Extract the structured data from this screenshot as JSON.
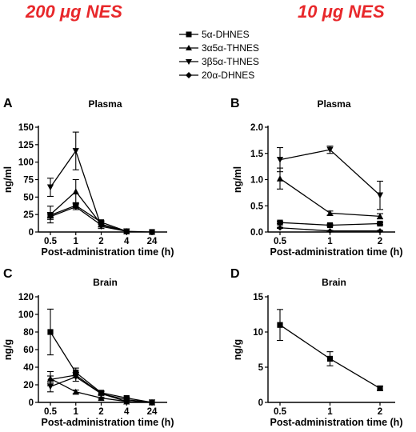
{
  "headings": {
    "left": "200 μg NES",
    "right": "10 μg NES"
  },
  "legend": [
    {
      "marker": "square",
      "label": "5α-DHNES"
    },
    {
      "marker": "triangle-up",
      "label": "3α5α-THNES"
    },
    {
      "marker": "triangle-down",
      "label": "3β5α-THNES"
    },
    {
      "marker": "diamond",
      "label": "20α-DHNES"
    }
  ],
  "colors": {
    "heading": "#e8282b",
    "ink": "#000000"
  },
  "chart_data": [
    {
      "panel": "A",
      "title": "Plasma",
      "type": "line",
      "xlabel": "Post-administration time (h)",
      "ylabel": "ng/ml",
      "x": [
        "0.5",
        "1",
        "2",
        "4",
        "24"
      ],
      "ylim": [
        0,
        150
      ],
      "yticks": [
        0,
        25,
        50,
        75,
        100,
        125,
        150
      ],
      "series": [
        {
          "name": "5α-DHNES",
          "marker": "square",
          "values": [
            24,
            38,
            14,
            1,
            0
          ],
          "err": [
            4,
            4,
            2,
            0,
            0
          ]
        },
        {
          "name": "3α5α-THNES",
          "marker": "triangle-up",
          "values": [
            25,
            58,
            11,
            1,
            null
          ],
          "err": [
            12,
            17,
            4,
            0,
            0
          ]
        },
        {
          "name": "3β5α-THNES",
          "marker": "triangle-down",
          "values": [
            64,
            116,
            8,
            1,
            null
          ],
          "err": [
            13,
            27,
            3,
            0,
            0
          ]
        },
        {
          "name": "20α-DHNES",
          "marker": "diamond",
          "values": [
            22,
            36,
            10,
            1,
            null
          ],
          "err": [
            4,
            4,
            2,
            0,
            0
          ]
        }
      ]
    },
    {
      "panel": "B",
      "title": "Plasma",
      "type": "line",
      "xlabel": "Post-administration time (h)",
      "ylabel": "ng/ml",
      "x": [
        "0.5",
        "1",
        "2"
      ],
      "ylim": [
        0,
        2.0
      ],
      "yticks": [
        "0.0",
        "0.5",
        "1.0",
        "1.5",
        "2.0"
      ],
      "series": [
        {
          "name": "5α-DHNES",
          "marker": "square",
          "values": [
            0.18,
            0.13,
            0.16
          ],
          "err": [
            0.02,
            0.02,
            0.02
          ]
        },
        {
          "name": "3α5α-THNES",
          "marker": "triangle-up",
          "values": [
            1.02,
            0.36,
            0.3
          ],
          "err": [
            0.2,
            0.04,
            0.05
          ]
        },
        {
          "name": "3β5α-THNES",
          "marker": "triangle-down",
          "values": [
            1.38,
            1.57,
            0.7
          ],
          "err": [
            0.23,
            0.07,
            0.27
          ]
        },
        {
          "name": "20α-DHNES",
          "marker": "diamond",
          "values": [
            0.08,
            0.02,
            0.02
          ],
          "err": [
            0.01,
            0.01,
            0.01
          ]
        }
      ]
    },
    {
      "panel": "C",
      "title": "Brain",
      "type": "line",
      "xlabel": "Post-administration time (h)",
      "ylabel": "ng/g",
      "x": [
        "0.5",
        "1",
        "2",
        "4",
        "24"
      ],
      "ylim": [
        0,
        120
      ],
      "yticks": [
        0,
        20,
        40,
        60,
        80,
        100,
        120
      ],
      "series": [
        {
          "name": "5α-DHNES",
          "marker": "square",
          "values": [
            80,
            34,
            11,
            5,
            0
          ],
          "err": [
            26,
            5,
            2,
            1,
            0
          ]
        },
        {
          "name": "3α5α-THNES",
          "marker": "triangle-up",
          "values": [
            27,
            12,
            5,
            1,
            0
          ],
          "err": [
            8,
            2,
            1,
            0,
            0
          ]
        },
        {
          "name": "3β5α-THNES",
          "marker": "triangle-down",
          "values": [
            18,
            29,
            10,
            3,
            0
          ],
          "err": [
            6,
            5,
            2,
            1,
            0
          ]
        },
        {
          "name": "20α-DHNES",
          "marker": "diamond",
          "values": [
            26,
            31,
            10,
            1,
            0
          ],
          "err": [
            4,
            3,
            2,
            0,
            0
          ]
        }
      ]
    },
    {
      "panel": "D",
      "title": "Brain",
      "type": "line",
      "xlabel": "Post-administration time (h)",
      "ylabel": "ng/g",
      "x": [
        "0.5",
        "1",
        "2"
      ],
      "ylim": [
        0,
        15
      ],
      "yticks": [
        0,
        5,
        10,
        15
      ],
      "series": [
        {
          "name": "5α-DHNES",
          "marker": "square",
          "values": [
            11,
            6.2,
            2.0
          ],
          "err": [
            2.2,
            1.0,
            0.3
          ]
        }
      ]
    }
  ]
}
